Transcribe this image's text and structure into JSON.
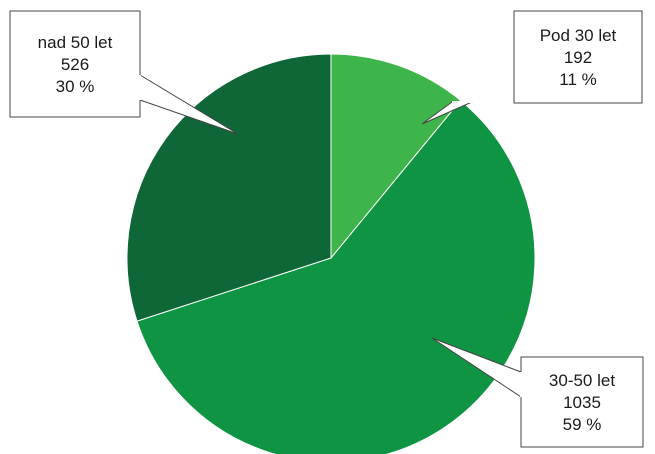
{
  "chart_data": {
    "type": "pie",
    "slices": [
      {
        "label": "Pod 30 let",
        "value": 192,
        "percent": "11 %",
        "color": "#3db54a"
      },
      {
        "label": "30-50 let",
        "value": 1035,
        "percent": "59 %",
        "color": "#0f9443"
      },
      {
        "label": "nad 50 let",
        "value": 526,
        "percent": "30 %",
        "color": "#0f6637"
      }
    ],
    "start_angle_deg": 0,
    "direction": "clockwise",
    "legend": "none",
    "data_labels": "callouts"
  }
}
